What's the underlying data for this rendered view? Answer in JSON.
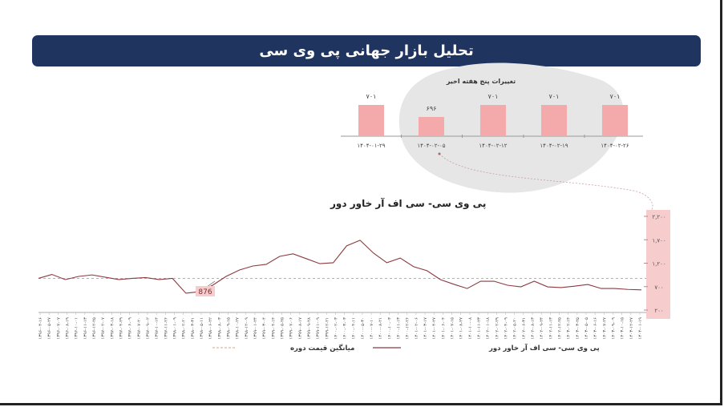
{
  "header": {
    "title": "تحلیل بازار جهانی پی وی سی"
  },
  "colors": {
    "header": "#1f3560",
    "bar": "#f4a9aa",
    "line": "#8b3a3f",
    "average": "#d9a58a",
    "axis_band": "#f7cccc",
    "blob": "#e6e6e6"
  },
  "chart_data": [
    {
      "type": "bar",
      "title": "تغییرات پنج هفته اخیر",
      "categories": [
        "۱۴۰۴-۰۱-۲۹",
        "۱۴۰۴-۰۲-۰۵",
        "۱۴۰۴-۰۲-۱۲",
        "۱۴۰۴-۰۲-۱۹",
        "۱۴۰۴-۰۲-۲۶"
      ],
      "values": [
        701,
        696,
        701,
        701,
        701
      ],
      "value_labels": [
        "۷۰۱",
        "۶۹۶",
        "۷۰۱",
        "۷۰۱",
        "۷۰۱"
      ],
      "ylim": [
        688,
        702
      ]
    },
    {
      "type": "line",
      "title": "پی وی سی- سی اف آر خاور دور",
      "yaxis_position": "right",
      "yticks": [
        200,
        700,
        1200,
        1700,
        2200
      ],
      "ytick_labels": [
        "۲۰۰",
        "۷۰۰",
        "۱,۲۰۰",
        "۱,۷۰۰",
        "۲,۲۰۰"
      ],
      "ylim": [
        200,
        2200
      ],
      "average": {
        "value": 876,
        "label": "876",
        "name": "میانگین قیمت دوره"
      },
      "series": [
        {
          "name": "پی وی سی- سی اف آر خاور دور",
          "values": [
            876,
            960,
            850,
            918,
            950,
            900,
            850,
            876,
            893,
            850,
            876,
            560,
            590,
            730,
            918,
            1055,
            1140,
            1175,
            1345,
            1400,
            1295,
            1190,
            1210,
            1570,
            1690,
            1416,
            1210,
            1310,
            1125,
            1040,
            850,
            750,
            660,
            815,
            815,
            730,
            695,
            815,
            695,
            680,
            710,
            745,
            660,
            660,
            640,
            630
          ]
        }
      ],
      "xtick_labels": [
        "۱۳۹۶-۰۴-۱۶",
        "۱۳۹۶-۰۵-۲۷",
        "۱۳۹۶-۰۷-۰۷",
        "۱۳۹۶-۰۸-۱۹",
        "۱۳۹۶-۱۰-۰۱",
        "۱۳۹۶-۱۱-۱۳",
        "۱۳۹۶-۱۲-۲۵",
        "۱۳۹۷-۰۲-۰۷",
        "۱۳۹۷-۰۳-۱۸",
        "۱۳۹۷-۰۴-۲۹",
        "۱۳۹۷-۰۶-۰۹",
        "۱۳۹۷-۰۷-۲۰",
        "۱۳۹۷-۰۹-۰۲",
        "۱۳۹۷-۱۰-۱۴",
        "۱۳۹۷-۱۱-۲۶",
        "۱۳۹۸-۰۱-۰۹",
        "۱۳۹۸-۰۲-۲۰",
        "۱۳۹۸-۰۳-۳۱",
        "۱۳۹۸-۰۵-۱۱",
        "۱۳۹۸-۰۶-۲۲",
        "۱۳۹۸-۰۸-۰۳",
        "۱۳۹۸-۰۹-۱۵",
        "۱۳۹۸-۱۰-۲۷",
        "۱۳۹۸-۱۲-۰۹",
        "۱۳۹۹-۰۱-۲۴",
        "۱۳۹۹-۰۳-۰۴",
        "۱۳۹۹-۰۴-۱۴",
        "۱۳۹۹-۰۵-۲۵",
        "۱۳۹۹-۰۷-۰۶",
        "۱۳۹۹-۰۸-۱۷",
        "۱۳۹۹-۰۹-۲۸",
        "۱۳۹۹-۱۱-۰۹",
        "۱۳۹۹-۱۲-۲۱",
        "۱۴۰۰-۰۲-۰۳",
        "۱۴۰۰-۰۳-۰۳",
        "۱۴۰۰-۰۴-۱۱",
        "۱۴۰۰-۰۵-۳۰",
        "۱۴۰۰-۰۷-۱۰",
        "۱۴۰۰-۰۸-۲۱",
        "۱۴۰۰-۱۰-۰۳",
        "۱۴۰۰-۱۱-۱۳",
        "۱۴۰۰-۱۲-۲۶",
        "۱۴۰۱-۰۲-۰۶",
        "۱۴۰۱-۰۳-۱۷",
        "۱۴۰۱-۰۴-۲۷",
        "۱۴۰۱-۰۶-۰۴",
        "۱۴۰۱-۰۷-۱۵",
        "۱۴۰۱-۰۸-۲۷",
        "۱۴۰۱-۱۰-۰۸",
        "۱۴۰۱-۱۱-۲۳",
        "۱۴۰۲-۰۱-۱۸",
        "۱۴۰۲-۰۲-۲۹",
        "۱۴۰۲-۰۴-۰۹",
        "۱۴۰۲-۰۵-۲۰",
        "۱۴۰۲-۰۶-۳۱",
        "۱۴۰۲-۰۸-۱۳",
        "۱۴۰۲-۰۹-۲۴",
        "۱۴۰۲-۱۱-۱۳",
        "۱۴۰۲-۱۲-۲۵",
        "۱۴۰۳-۰۲-۱۴",
        "۱۴۰۳-۰۳-۲۵",
        "۱۴۰۳-۰۵-۰۵",
        "۱۴۰۳-۰۶-۱۶",
        "۱۴۰۳-۰۷-۲۷",
        "۱۴۰۳-۰۹-۰۹",
        "۱۴۰۳-۱۰-۱۵",
        "۱۴۰۳-۱۲-۲۷",
        "۱۴۰۴-۰۱-۱۹"
      ]
    }
  ]
}
